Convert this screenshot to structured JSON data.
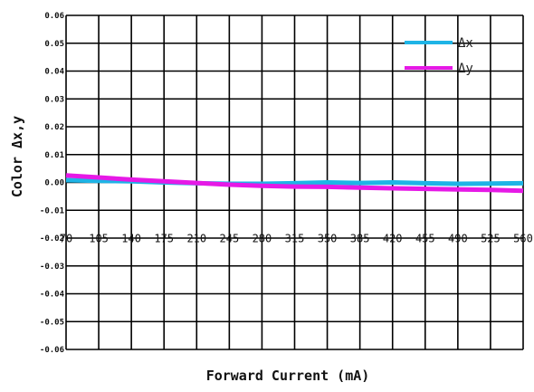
{
  "chart_data": {
    "type": "line",
    "xlabel": "Forward Current (mA)",
    "ylabel": "Color Δx,y",
    "x_ticks": [
      70,
      105,
      140,
      175,
      210,
      245,
      280,
      315,
      350,
      385,
      420,
      455,
      490,
      525,
      560
    ],
    "y_ticks": [
      0.06,
      0.05,
      0.04,
      0.03,
      0.02,
      0.01,
      0.0,
      -0.01,
      -0.02,
      -0.03,
      -0.04,
      -0.05,
      -0.06
    ],
    "y_tick_labels": [
      "0.06",
      "0.05",
      "0.04",
      "0.03",
      "0.02",
      "0.01",
      "0.00",
      "-0.01",
      "-0.02",
      "-0.03",
      "-0.04",
      "-0.05",
      "-0.06"
    ],
    "xlim": [
      70,
      560
    ],
    "ylim": [
      -0.06,
      0.06
    ],
    "grid": true,
    "legend_position": "top-right",
    "series": [
      {
        "name": "Δx",
        "color": "#1EB4E6",
        "x": [
          70,
          105,
          140,
          175,
          210,
          245,
          280,
          315,
          350,
          385,
          420,
          455,
          490,
          525,
          560
        ],
        "y": [
          0.0008,
          0.0006,
          0.0004,
          0.0,
          -0.0003,
          -0.0005,
          -0.0005,
          -0.0003,
          0.0,
          -0.0002,
          0.0,
          -0.0003,
          -0.0005,
          -0.0004,
          -0.0003
        ]
      },
      {
        "name": "Δy",
        "color": "#E619E6",
        "x": [
          70,
          105,
          140,
          175,
          210,
          245,
          280,
          315,
          350,
          385,
          420,
          455,
          490,
          525,
          560
        ],
        "y": [
          0.0025,
          0.0018,
          0.001,
          0.0004,
          -0.0002,
          -0.0008,
          -0.0012,
          -0.0015,
          -0.0016,
          -0.0019,
          -0.0021,
          -0.0023,
          -0.0025,
          -0.0027,
          -0.003
        ]
      }
    ]
  }
}
